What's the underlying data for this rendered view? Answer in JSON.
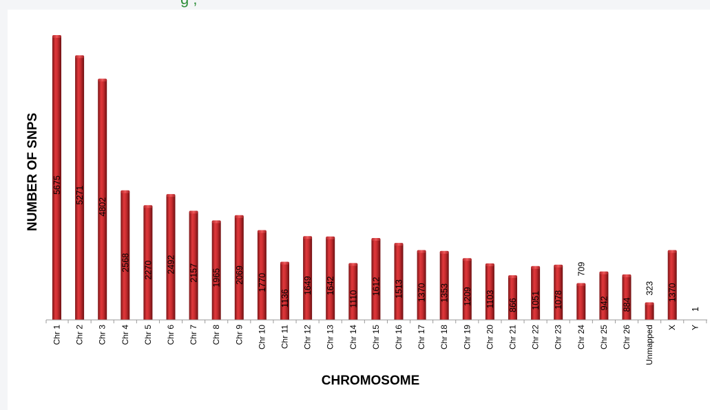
{
  "header": {
    "fragment": "g          ,   "
  },
  "chart_data": {
    "type": "bar",
    "xlabel": "CHROMOSOME",
    "ylabel": "NUMBER OF SNPS",
    "categories": [
      "Chr 1",
      "Chr 2",
      "Chr 3",
      "Chr 4",
      "Chr 5",
      "Chr 6",
      "Chr 7",
      "Chr 8",
      "Chr 9",
      "Chr 10",
      "Chr 11",
      "Chr 12",
      "Chr 13",
      "Chr 14",
      "Chr 15",
      "Chr 16",
      "Chr 17",
      "Chr 18",
      "Chr 19",
      "Chr 20",
      "Chr 21",
      "Chr 22",
      "Chr 23",
      "Chr 24",
      "Chr 25",
      "Chr 26",
      "Unmapped",
      "X",
      "Y"
    ],
    "values": [
      5675,
      5271,
      4802,
      2568,
      2270,
      2492,
      2157,
      1965,
      2069,
      1770,
      1136,
      1649,
      1642,
      1110,
      1612,
      1513,
      1370,
      1353,
      1209,
      1103,
      866,
      1051,
      1078,
      709,
      942,
      884,
      323,
      1370,
      1
    ],
    "bar_color": "#c0282b",
    "ylim": [
      0,
      5675
    ],
    "grid": false,
    "legend": "none"
  }
}
